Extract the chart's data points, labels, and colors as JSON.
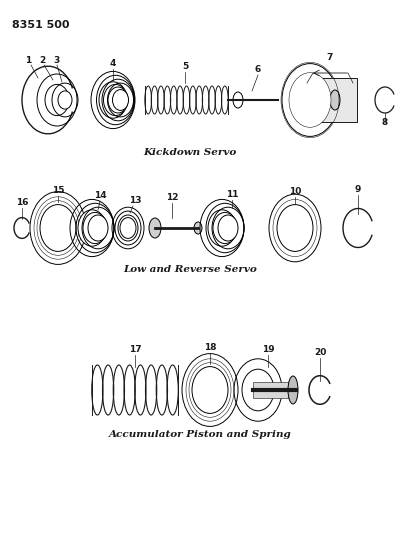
{
  "title_ref": "8351 500",
  "section1_label": "Kickdown Servo",
  "section2_label": "Low and Reverse Servo",
  "section3_label": "Accumulator Piston and Spring",
  "bg_color": "#ffffff",
  "line_color": "#1a1a1a",
  "font_color": "#1a1a1a",
  "title_fontsize": 8,
  "label_fontsize": 7.5,
  "number_fontsize": 6.5
}
